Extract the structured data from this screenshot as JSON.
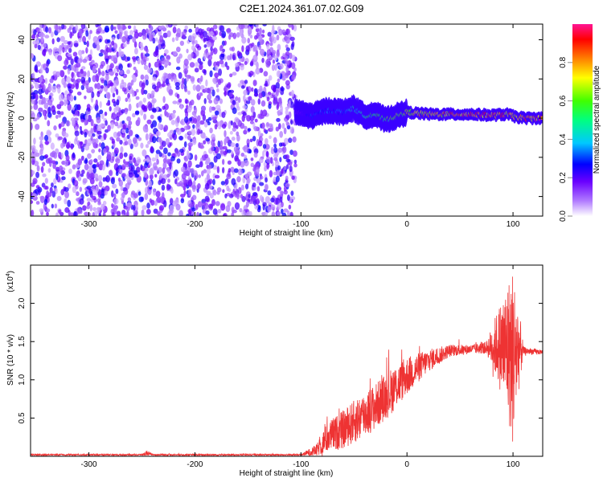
{
  "title": "C2E1.2024.361.07.02.G09",
  "chart_data": [
    {
      "type": "heatmap",
      "xlabel": "Height of straight line (km)",
      "ylabel": "Frequency (Hz)",
      "xlim": [
        -355,
        128
      ],
      "ylim": [
        -50,
        48
      ],
      "xticks": [
        -300,
        -200,
        -100,
        0,
        100
      ],
      "yticks": [
        -40,
        -20,
        0,
        20,
        40
      ],
      "colorbar": {
        "label": "Normalized spectral amplitude",
        "range": [
          0,
          1
        ],
        "ticks": [
          "0.0",
          "0.2",
          "0.4",
          "0.6",
          "0.8"
        ],
        "colors": [
          "#ffffff",
          "#8a2be2",
          "#0000ff",
          "#00c8ff",
          "#00ff00",
          "#ffff00",
          "#ff8000",
          "#ff0000",
          "#ff1493"
        ]
      },
      "noise_region_x": [
        -355,
        -105
      ],
      "noise_amplitude": 0.15,
      "signal_track": {
        "x": [
          -105,
          -90,
          -75,
          -60,
          -50,
          -40,
          -30,
          -20,
          -10,
          0,
          20,
          40,
          60,
          80,
          95,
          100,
          110,
          128
        ],
        "y": [
          3,
          1,
          4,
          3,
          5,
          1,
          2,
          -1,
          1,
          3,
          2,
          2,
          2,
          1.5,
          2,
          1,
          0,
          0
        ],
        "amplitude": [
          0.15,
          0.3,
          0.35,
          0.35,
          0.45,
          0.5,
          0.55,
          0.6,
          0.65,
          0.7,
          0.8,
          0.85,
          0.9,
          0.9,
          0.85,
          0.8,
          0.9,
          0.95
        ]
      }
    },
    {
      "type": "line",
      "xlabel": "Height of straight line (km)",
      "ylabel": "SNR (10 * v/v)",
      "yscale_label": "(x10",
      "yscale_exp": "4",
      "yscale_close": ")",
      "xlim": [
        -355,
        128
      ],
      "ylim": [
        0,
        2.5
      ],
      "xticks": [
        -300,
        -200,
        -100,
        0,
        100
      ],
      "yticks": [
        "0.5",
        "1.0",
        "1.5",
        "2.0"
      ],
      "color": "#ee3333",
      "envelope": {
        "x": [
          -355,
          -250,
          -245,
          -240,
          -100,
          -85,
          -75,
          -60,
          -45,
          -30,
          -15,
          0,
          20,
          40,
          60,
          75,
          85,
          95,
          100,
          105,
          110,
          128
        ],
        "mean": [
          0.02,
          0.02,
          0.04,
          0.02,
          0.02,
          0.08,
          0.25,
          0.35,
          0.5,
          0.65,
          0.85,
          1.05,
          1.25,
          1.38,
          1.4,
          1.42,
          1.45,
          1.4,
          1.3,
          1.4,
          1.38,
          1.36
        ],
        "spread": [
          0.01,
          0.01,
          0.03,
          0.01,
          0.01,
          0.08,
          0.2,
          0.25,
          0.3,
          0.3,
          0.3,
          0.25,
          0.15,
          0.08,
          0.06,
          0.08,
          0.45,
          0.9,
          1.2,
          0.6,
          0.05,
          0.03
        ]
      }
    }
  ]
}
